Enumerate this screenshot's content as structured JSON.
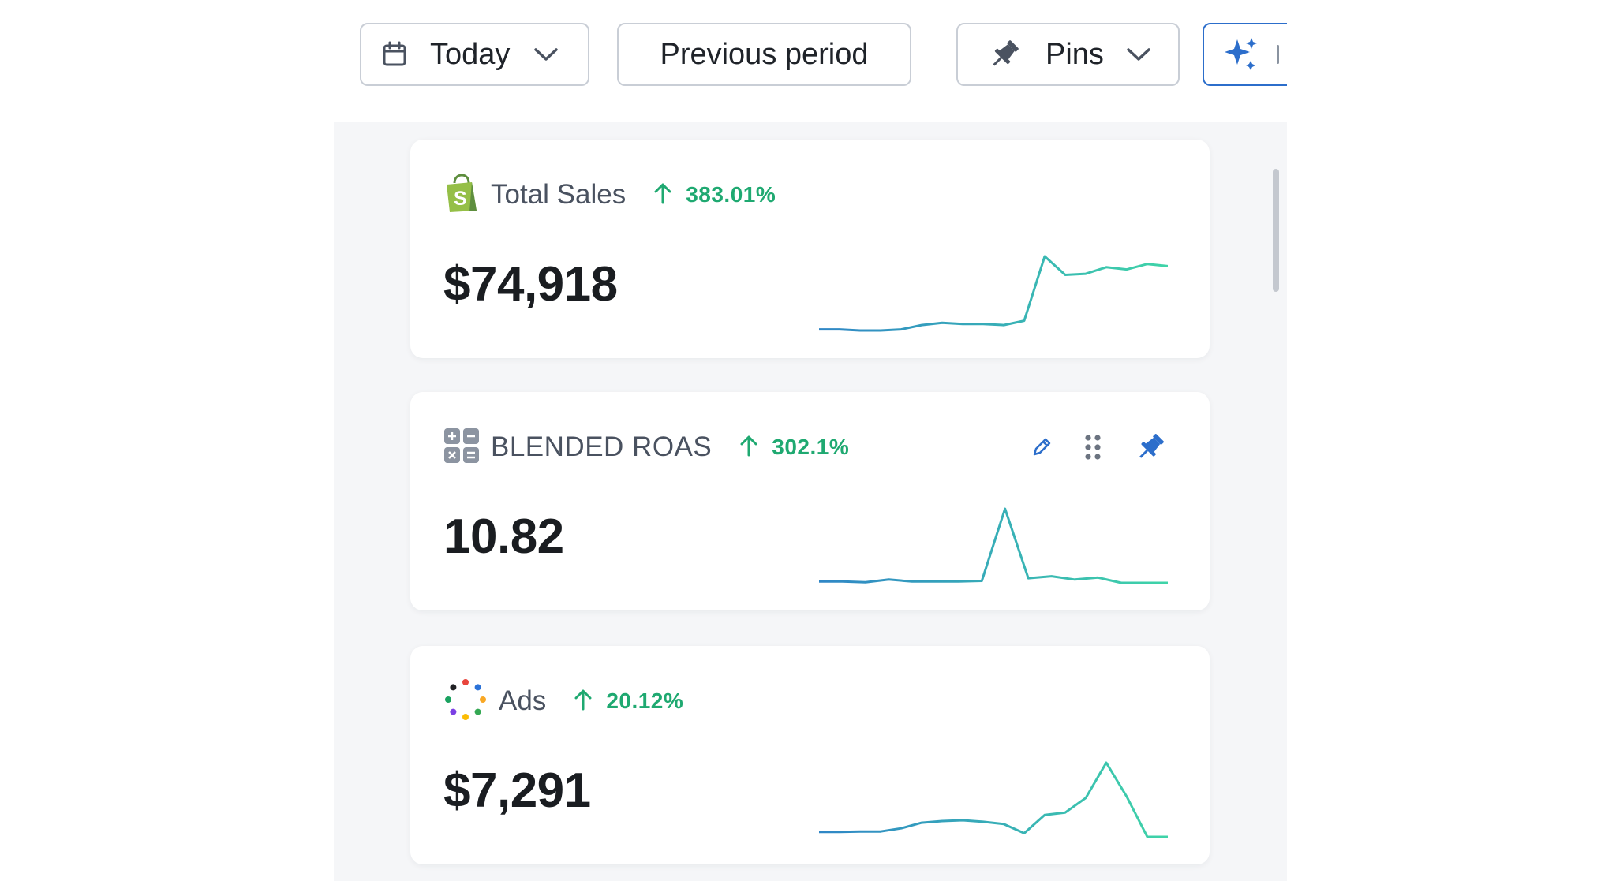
{
  "toolbar": {
    "date_range": {
      "label": "Today",
      "icon": "calendar-icon"
    },
    "compare_label": "Previous period",
    "pins": {
      "label": "Pins",
      "icon": "pin-icon"
    },
    "ai_icon": "sparkle-icon"
  },
  "colors": {
    "accent": "#2c6ecb",
    "positive": "#1fa971",
    "sparkline_start": "#2f86c6",
    "sparkline_end": "#3fd4a8"
  },
  "cards": [
    {
      "title": "Total Sales",
      "icon": "shopify-bag-icon",
      "trend_direction": "up",
      "trend_value": "383.01%",
      "value": "$74,918",
      "sparkline": [
        13.6,
        13.6,
        13.5,
        13.5,
        13.6,
        14.0,
        14.2,
        14.1,
        14.1,
        14.0,
        14.4,
        20.3,
        18.6,
        18.7,
        19.3,
        19.1,
        19.6,
        19.4
      ]
    },
    {
      "title": "BLENDED ROAS",
      "icon": "calculator-icon",
      "trend_direction": "up",
      "trend_value": "302.1%",
      "value": "10.82",
      "actions": [
        "edit-icon",
        "drag-handle-icon",
        "pin-icon"
      ],
      "sparkline": [
        1.0,
        1.0,
        0.9,
        1.3,
        1.0,
        1.0,
        1.0,
        1.1,
        12.0,
        1.5,
        1.8,
        1.3,
        1.6,
        0.8,
        0.8,
        0.8
      ]
    },
    {
      "title": "Ads",
      "icon": "ads-dots-icon",
      "trend_direction": "up",
      "trend_value": "20.12%",
      "value": "$7,291",
      "sparkline": [
        5,
        5,
        5.2,
        5.2,
        6.5,
        8.8,
        9.5,
        9.8,
        9.2,
        8.3,
        4.5,
        12,
        13,
        19,
        33.5,
        19.5,
        3,
        3
      ]
    }
  ]
}
